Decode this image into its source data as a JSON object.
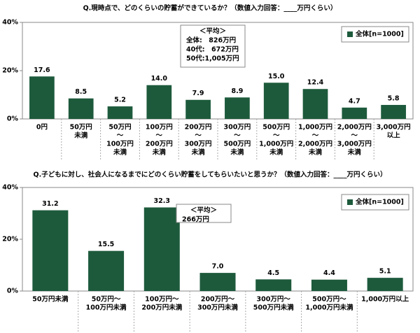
{
  "chart_data": [
    {
      "type": "bar",
      "title": "Q.現時点で、どのくらいの貯蓄ができているか？（数値入力回答：____万円くらい）",
      "categories": [
        [
          "0円"
        ],
        [
          "50万円",
          "未満"
        ],
        [
          "50万円",
          "～",
          "100万円",
          "未満"
        ],
        [
          "100万円",
          "～",
          "200万円",
          "未満"
        ],
        [
          "200万円",
          "～",
          "300万円",
          "未満"
        ],
        [
          "300万円",
          "～",
          "500万円",
          "未満"
        ],
        [
          "500万円",
          "～",
          "1,000万円",
          "未満"
        ],
        [
          "1,000万円",
          "～",
          "2,000万円",
          "未満"
        ],
        [
          "2,000万円",
          "～",
          "3,000万円",
          "未満"
        ],
        [
          "3,000万円",
          "以上"
        ]
      ],
      "series": [
        {
          "name": "全体[n=1000]",
          "color": "#1d5a3c",
          "values": [
            17.6,
            8.5,
            5.2,
            14.0,
            7.9,
            8.9,
            15.0,
            12.4,
            4.7,
            5.8
          ],
          "value_labels": [
            "17.6",
            "8.5",
            "5.2",
            "14.0",
            "7.9",
            "8.9",
            "15.0",
            "12.4",
            "4.7",
            "5.8"
          ]
        }
      ],
      "ylim": [
        0,
        40
      ],
      "yticks": [
        {
          "value": 0,
          "label": "0%"
        },
        {
          "value": 20,
          "label": "20%"
        },
        {
          "value": 40,
          "label": "40%"
        }
      ],
      "annotation": [
        "＜平均＞",
        "全体:　826万円",
        "40代:　672万円",
        "50代:1,005万円"
      ]
    },
    {
      "type": "bar",
      "title": "Q.子どもに対し、社会人になるまでにどのくらい貯蓄をしてもらいたいと思うか？（数値入力回答：____万円くらい）",
      "categories": [
        [
          "50万円未満"
        ],
        [
          "50万円～",
          "100万円未満"
        ],
        [
          "100万円～",
          "200万円未満"
        ],
        [
          "200万円～",
          "300万円未満"
        ],
        [
          "300万円～",
          "500万円未満"
        ],
        [
          "500万円～",
          "1,000万円未満"
        ],
        [
          "1,000万円以上"
        ]
      ],
      "series": [
        {
          "name": "全体[n=1000]",
          "color": "#1d5a3c",
          "values": [
            31.2,
            15.5,
            32.3,
            7.0,
            4.5,
            4.4,
            5.1
          ],
          "value_labels": [
            "31.2",
            "15.5",
            "32.3",
            "7.0",
            "4.5",
            "4.4",
            "5.1"
          ]
        }
      ],
      "ylim": [
        0,
        40
      ],
      "yticks": [
        {
          "value": 0,
          "label": "0%"
        },
        {
          "value": 20,
          "label": "20%"
        },
        {
          "value": 40,
          "label": "40%"
        }
      ],
      "annotation": [
        "＜平均＞",
        "266万円"
      ]
    }
  ]
}
